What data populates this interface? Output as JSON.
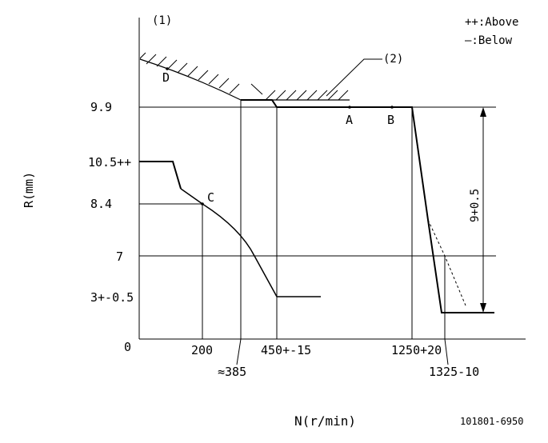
{
  "labels": {
    "marker_1": "(1)",
    "marker_2": "(2)",
    "legend_above": "++:Above",
    "legend_below": "—:Below",
    "y_axis_title": "R(mm)",
    "x_axis_title": "N(r/min)",
    "drawing_number": "101801-6950",
    "point_a": "A",
    "point_b": "B",
    "point_c": "C",
    "point_d": "D",
    "dimension_span": "9+0.5"
  },
  "y_ticks": [
    "9.9",
    "10.5++",
    "8.4",
    "7",
    "3+-0.5",
    "0"
  ],
  "x_ticks": [
    "200",
    "≈385",
    "450+-15",
    "1250+20",
    "1325-10"
  ],
  "colors": {
    "line": "#000000",
    "background": "#ffffff"
  }
}
